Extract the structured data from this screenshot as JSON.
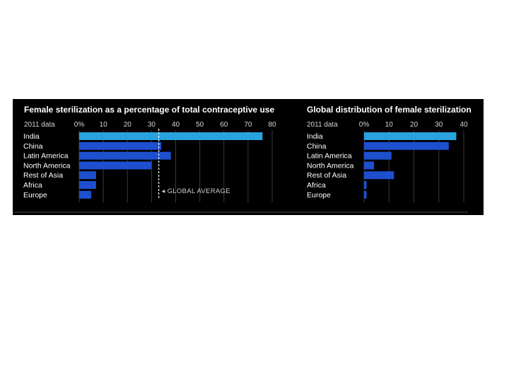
{
  "chart_data": [
    {
      "type": "bar",
      "title": "Female sterilization as a percentage of total contraceptive use",
      "subtitle": "2011 data",
      "tick_labels": [
        "0%",
        "10",
        "20",
        "30",
        "40",
        "50",
        "60",
        "70",
        "80"
      ],
      "xlim": [
        0,
        80
      ],
      "categories": [
        "India",
        "China",
        "Latin America",
        "North America",
        "Rest of Asia",
        "Africa",
        "Europe"
      ],
      "values": [
        76,
        34,
        38,
        30,
        7,
        7,
        5
      ],
      "bar_colors": [
        "#29a3e0",
        "#1e4fcf",
        "#1e4fcf",
        "#1e4fcf",
        "#1e4fcf",
        "#1e4fcf",
        "#1e4fcf"
      ],
      "reference_line": {
        "value": 33,
        "label": "◂ GLOBAL AVERAGE"
      },
      "grid": true
    },
    {
      "type": "bar",
      "title": "Global distribution of female sterilization",
      "subtitle": "2011 data",
      "tick_labels": [
        "0%",
        "10",
        "20",
        "30",
        "40"
      ],
      "xlim": [
        0,
        40
      ],
      "categories": [
        "India",
        "China",
        "Latin America",
        "North America",
        "Rest of Asia",
        "Africa",
        "Europe"
      ],
      "values": [
        37,
        34,
        11,
        4,
        12,
        1,
        1
      ],
      "bar_colors": [
        "#29a3e0",
        "#1e4fcf",
        "#1e4fcf",
        "#1e4fcf",
        "#1e4fcf",
        "#1e4fcf",
        "#1e4fcf"
      ],
      "grid": true
    }
  ],
  "colors": {
    "background": "#000000",
    "highlight": "#29a3e0",
    "bar": "#1e4fcf",
    "grid": "#3a3a3a"
  }
}
